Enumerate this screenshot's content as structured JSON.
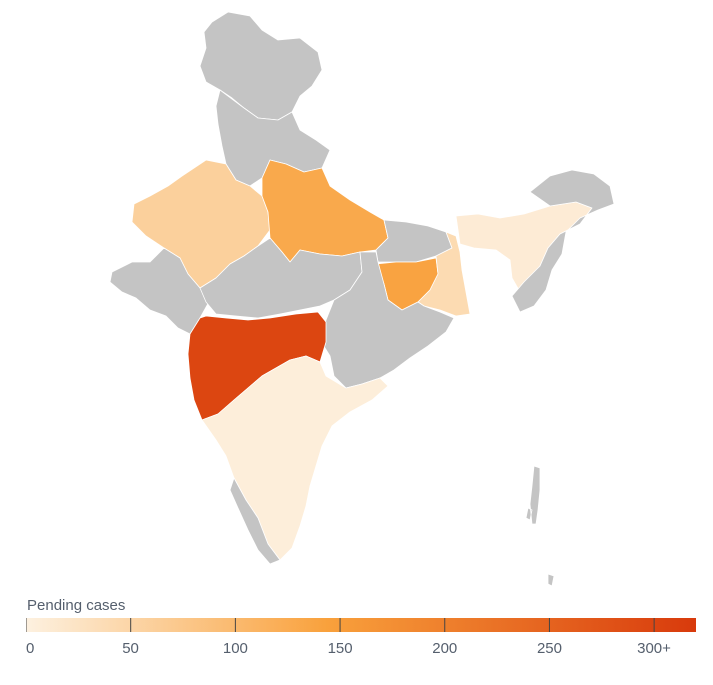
{
  "legend": {
    "title": "Pending cases",
    "ticks": [
      "0",
      "50",
      "100",
      "150",
      "200",
      "250",
      "300+"
    ],
    "tick_values": [
      0,
      50,
      100,
      150,
      200,
      250,
      300
    ],
    "max_value": 320
  },
  "colors": {
    "no_data": "#c4c4c4",
    "scale_start": "#fdf1e0",
    "scale_mid": "#f9a13c",
    "scale_end": "#d83a0c",
    "border": "#ffffff"
  },
  "regions": [
    {
      "key": "jammu-kashmir-ladakh",
      "level": null
    },
    {
      "key": "himachal-punjab",
      "level": null
    },
    {
      "key": "rajasthan-gujarat-north",
      "level": 60
    },
    {
      "key": "uttar-pradesh",
      "level": 130
    },
    {
      "key": "gujarat",
      "level": null
    },
    {
      "key": "madhya-pradesh",
      "level": null
    },
    {
      "key": "bihar",
      "level": null
    },
    {
      "key": "jharkhand",
      "level": 140
    },
    {
      "key": "west-bengal",
      "level": 40
    },
    {
      "key": "chhattisgarh-odisha",
      "level": null
    },
    {
      "key": "maharashtra",
      "level": 300
    },
    {
      "key": "northeast",
      "level": 10
    },
    {
      "key": "northeast-other",
      "level": null
    },
    {
      "key": "south",
      "level": 5
    },
    {
      "key": "kerala",
      "level": null
    },
    {
      "key": "islands",
      "level": null
    }
  ]
}
